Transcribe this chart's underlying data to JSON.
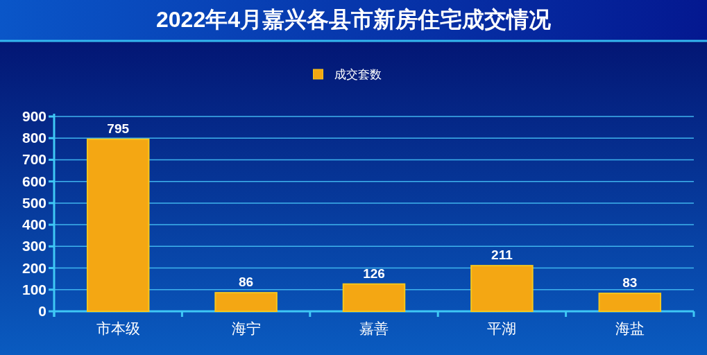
{
  "chart_data": {
    "type": "bar",
    "title": "2022年4月嘉兴各县市新房住宅成交情况",
    "categories": [
      "市本级",
      "海宁",
      "嘉善",
      "平湖",
      "海盐"
    ],
    "series": [
      {
        "name": "成交套数",
        "color": "#f4a713",
        "values": [
          795,
          86,
          126,
          211,
          83
        ]
      }
    ],
    "ylim": [
      0,
      900
    ],
    "yticks": [
      0,
      100,
      200,
      300,
      400,
      500,
      600,
      700,
      800,
      900
    ],
    "grid": "y",
    "legend": "top",
    "data_labels": true
  }
}
